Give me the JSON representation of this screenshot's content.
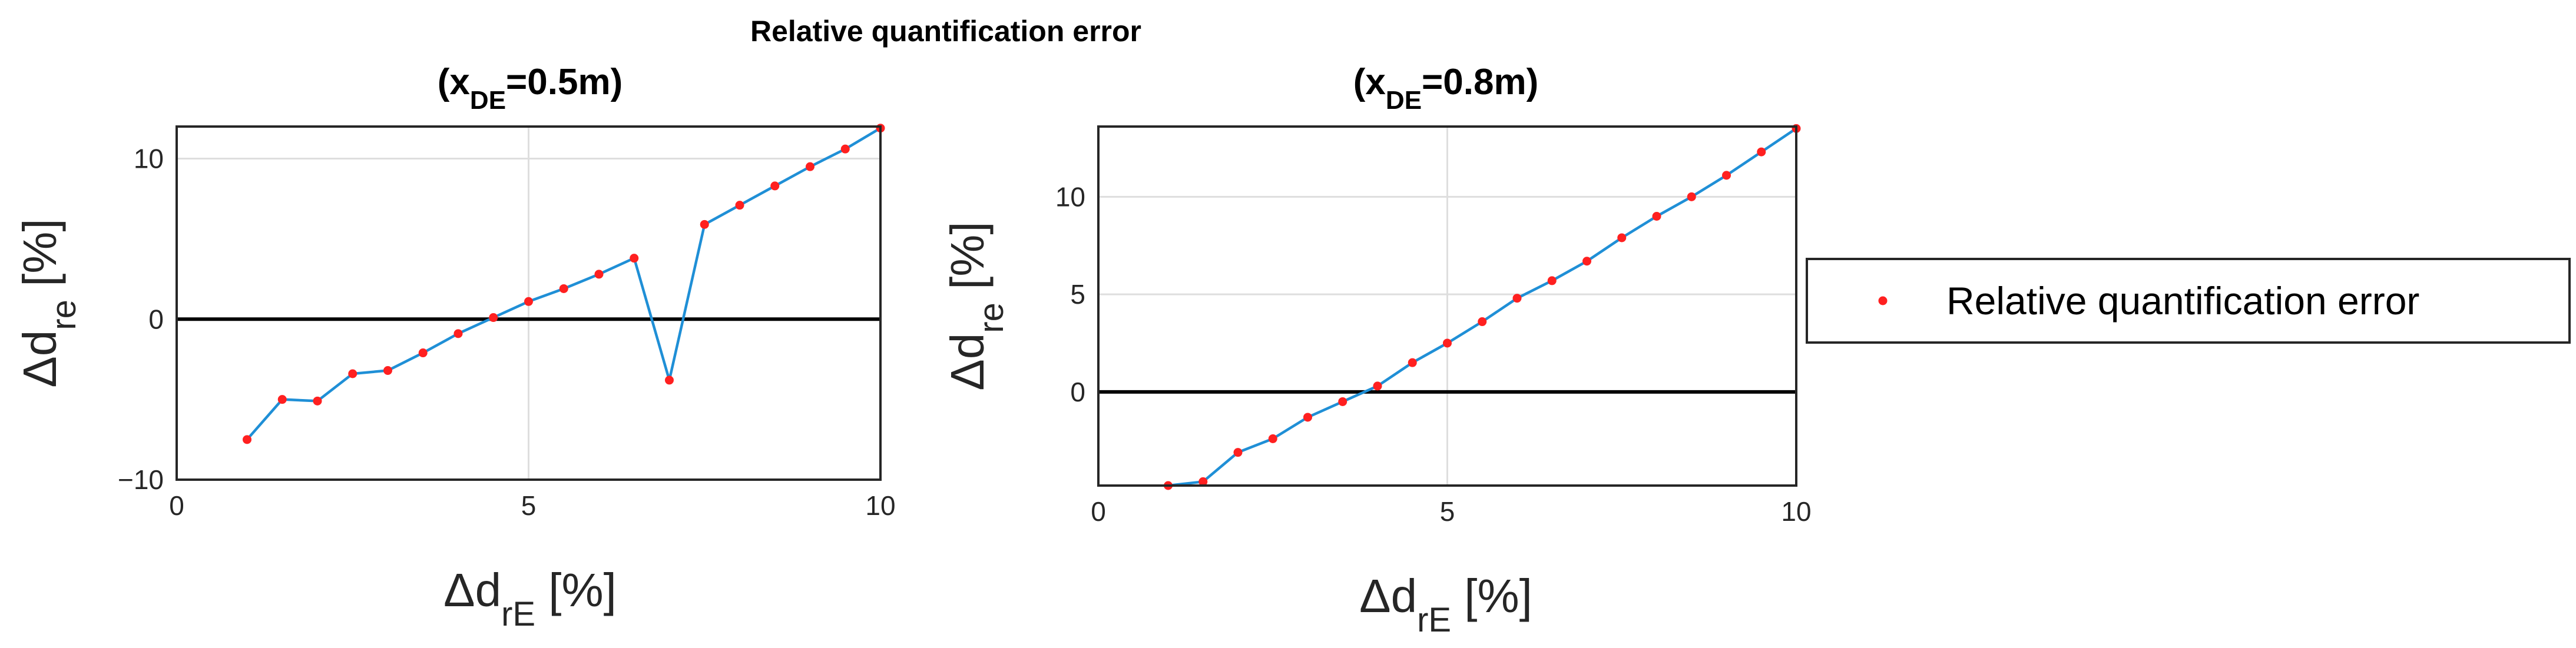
{
  "chart_data": {
    "title": "Relative quantification error",
    "legend": {
      "entries": [
        "Relative quantification error"
      ],
      "placement": "outside-right",
      "marker_color": "#ff2020"
    },
    "colors": {
      "points": "#ff2020",
      "line": "#1f8fd6",
      "zero_line": "#000000"
    },
    "panels": [
      {
        "type": "line",
        "subtitle": {
          "x": "(x",
          "sub": "DE",
          "rest": "=0.5m)"
        },
        "xlabel": {
          "main": "Δd",
          "sub": "rE",
          "rest": " [%]"
        },
        "ylabel": {
          "main": "Δd",
          "sub": "re",
          "rest": " [%]"
        },
        "xlim": [
          0,
          10
        ],
        "ylim": [
          -10,
          12
        ],
        "xticks": [
          0,
          5,
          10
        ],
        "xtick_labels": [
          "0",
          "5",
          "10"
        ],
        "yticks": [
          -10,
          0,
          10
        ],
        "ytick_labels": [
          "−10",
          "0",
          "10"
        ],
        "grid": true,
        "x": [
          1,
          1.5,
          2,
          2.5,
          3,
          3.5,
          4,
          4.5,
          5,
          5.5,
          6,
          6.5,
          7,
          7.5,
          8,
          8.5,
          9,
          9.5,
          10
        ],
        "y": [
          -7.5,
          -5,
          -5.1,
          -3.4,
          -3.2,
          -2.1,
          -0.9,
          0.1,
          1.1,
          1.9,
          2.8,
          3.8,
          -3.8,
          5.9,
          7.1,
          8.3,
          9.5,
          10.6,
          11.9
        ]
      },
      {
        "type": "line",
        "subtitle": {
          "x": "(x",
          "sub": "DE",
          "rest": "=0.8m)"
        },
        "xlabel": {
          "main": "Δd",
          "sub": "rE",
          "rest": " [%]"
        },
        "ylabel": {
          "main": "Δd",
          "sub": "re",
          "rest": " [%]"
        },
        "xlim": [
          0,
          10
        ],
        "ylim": [
          -4.8,
          13.6
        ],
        "xticks": [
          0,
          5,
          10
        ],
        "xtick_labels": [
          "0",
          "5",
          "10"
        ],
        "yticks": [
          0,
          5,
          10
        ],
        "ytick_labels": [
          "0",
          "5",
          "10"
        ],
        "grid": true,
        "x": [
          1,
          1.5,
          2,
          2.5,
          3,
          3.5,
          4,
          4.5,
          5,
          5.5,
          6,
          6.5,
          7,
          7.5,
          8,
          8.5,
          9,
          9.5,
          10
        ],
        "y": [
          -4.8,
          -4.6,
          -3.1,
          -2.4,
          -1.3,
          -0.5,
          0.3,
          1.5,
          2.5,
          3.6,
          4.8,
          5.7,
          6.7,
          7.9,
          9.0,
          10.0,
          11.1,
          12.3,
          13.5
        ]
      }
    ]
  }
}
